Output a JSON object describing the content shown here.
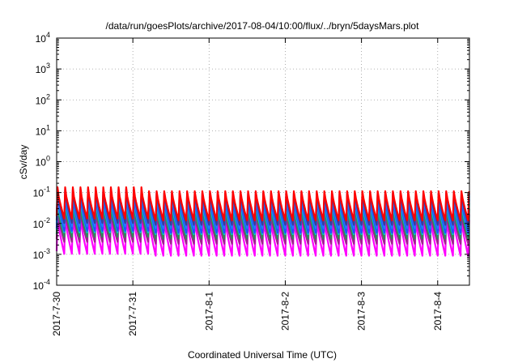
{
  "chart_data": {
    "type": "line",
    "title": "/data/run/goesPlots/archive/2017-08-04/10:00/flux/../bryn/5daysMars.plot",
    "xlabel": "Coordinated Universal Time (UTC)",
    "ylabel": "cSv/day",
    "yscale": "log",
    "ylim": [
      0.0001,
      10000
    ],
    "y_ticks": [
      {
        "base": "10",
        "exp": "-4",
        "value": 0.0001
      },
      {
        "base": "10",
        "exp": "-3",
        "value": 0.001
      },
      {
        "base": "10",
        "exp": "-2",
        "value": 0.01
      },
      {
        "base": "10",
        "exp": "-1",
        "value": 0.1
      },
      {
        "base": "10",
        "exp": "0",
        "value": 1
      },
      {
        "base": "10",
        "exp": "1",
        "value": 10
      },
      {
        "base": "10",
        "exp": "2",
        "value": 100
      },
      {
        "base": "10",
        "exp": "3",
        "value": 1000
      },
      {
        "base": "10",
        "exp": "4",
        "value": 10000
      }
    ],
    "xlim": [
      "2017-07-30T00:00",
      "2017-08-04T10:00"
    ],
    "x_ticks": [
      "2017-7-30",
      "2017-7-31",
      "2017-8-1",
      "2017-8-2",
      "2017-8-3",
      "2017-8-4"
    ],
    "grid": true,
    "legend": "none",
    "sawtooth_period_hours": 2.4,
    "series": [
      {
        "color": "#ff0000",
        "peak": 0.11,
        "trough": 0.0125
      },
      {
        "color": "#3a3aa0",
        "peak": 0.095,
        "trough": 0.009
      },
      {
        "color": "#1f7fff",
        "peak": 0.075,
        "trough": 0.007
      },
      {
        "color": "#2050ff",
        "peak": 0.06,
        "trough": 0.005
      },
      {
        "color": "#00d0d0",
        "peak": 0.045,
        "trough": 0.0045
      },
      {
        "color": "#2e8b57",
        "peak": 0.03,
        "trough": 0.0032
      },
      {
        "color": "#a0208f",
        "peak": 0.02,
        "trough": 0.0022
      },
      {
        "color": "#ff00ff",
        "peak": 0.013,
        "trough": 0.0009
      }
    ]
  }
}
